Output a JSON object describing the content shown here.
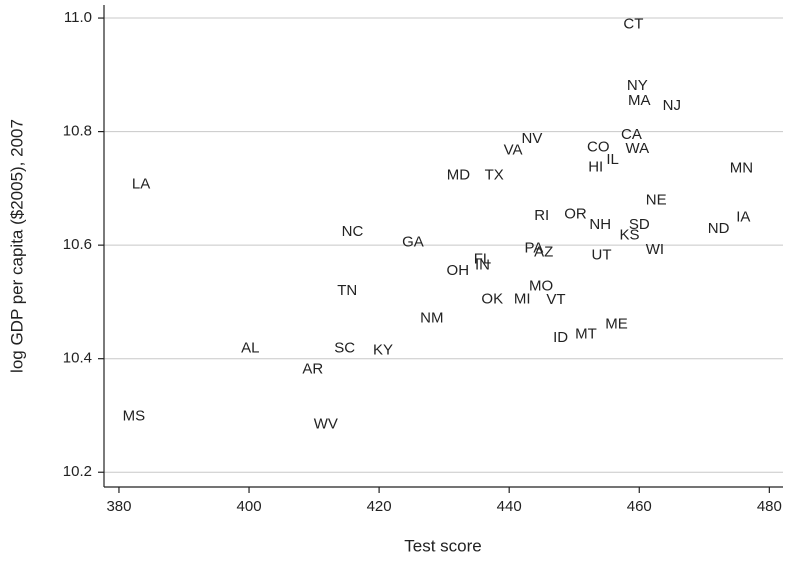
{
  "chart_data": {
    "type": "scatter",
    "xlabel": "Test score",
    "ylabel": "log GDP per capita ($2005), 2007",
    "xlim": [
      377.7,
      482.1
    ],
    "ylim": [
      10.174,
      11.023
    ],
    "xticks": [
      380,
      400,
      420,
      440,
      460,
      480
    ],
    "yticks": [
      10.2,
      10.4,
      10.6,
      10.8,
      {
        "value": 11,
        "label": "11.0"
      }
    ],
    "grid": true,
    "labels": [
      "CT",
      "NY",
      "MA",
      "NJ",
      "CA",
      "CO",
      "WA",
      "NV",
      "VA",
      "IL",
      "HI",
      "MN",
      "LA",
      "MD",
      "TX",
      "NE",
      "IA",
      "RI",
      "OR",
      "NH",
      "SD",
      "ND",
      "KS",
      "NC",
      "GA",
      "PA",
      "AZ",
      "UT",
      "WI",
      "FL",
      "IN",
      "OH",
      "TN",
      "MO",
      "OK",
      "MI",
      "VT",
      "NM",
      "ME",
      "MT",
      "ID",
      "AL",
      "SC",
      "KY",
      "AR",
      "MS",
      "WV"
    ],
    "x": [
      459.1,
      459.7,
      460.0,
      465.0,
      458.8,
      453.7,
      459.7,
      443.5,
      440.6,
      455.9,
      453.3,
      475.7,
      383.4,
      432.2,
      437.7,
      462.6,
      476.0,
      445.0,
      450.2,
      454.0,
      460.0,
      472.2,
      458.5,
      415.9,
      425.2,
      443.8,
      445.3,
      454.2,
      462.4,
      435.9,
      435.9,
      432.1,
      415.1,
      444.9,
      437.4,
      442.0,
      447.2,
      428.1,
      456.5,
      451.8,
      447.9,
      400.2,
      414.7,
      420.6,
      409.8,
      382.3,
      411.8
    ],
    "values": [
      10.989,
      10.88,
      10.854,
      10.845,
      10.794,
      10.772,
      10.769,
      10.787,
      10.767,
      10.75,
      10.737,
      10.735,
      10.707,
      10.723,
      10.723,
      10.679,
      10.649,
      10.651,
      10.654,
      10.635,
      10.635,
      10.628,
      10.617,
      10.623,
      10.605,
      10.594,
      10.587,
      10.582,
      10.591,
      10.575,
      10.564,
      10.554,
      10.519,
      10.527,
      10.504,
      10.504,
      10.503,
      10.471,
      10.46,
      10.443,
      10.436,
      10.418,
      10.418,
      10.414,
      10.381,
      10.298,
      10.284
    ]
  }
}
